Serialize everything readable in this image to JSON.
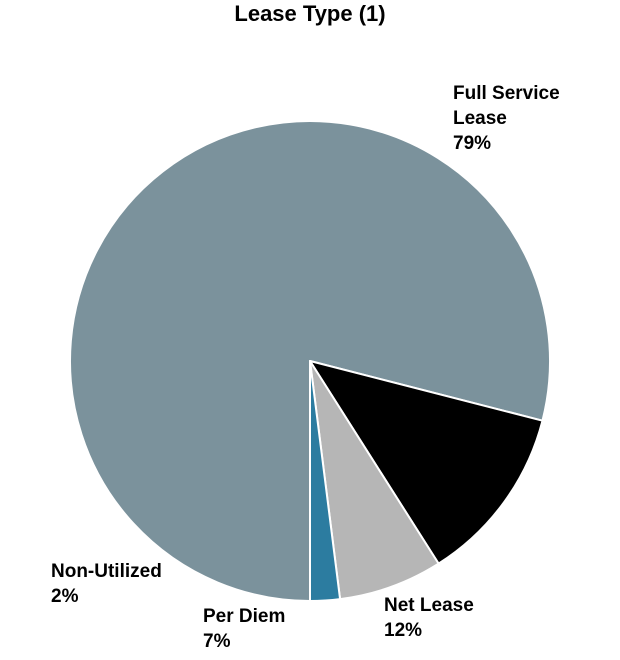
{
  "chart_data": {
    "type": "pie",
    "title": "Lease Type (1)",
    "start_angle_deg": 180,
    "direction": "clockwise",
    "slices": [
      {
        "key": "full-service-lease",
        "label_lines": [
          "Full Service",
          "Lease"
        ],
        "value": 79,
        "pct_label": "79%",
        "color": "#7B929C"
      },
      {
        "key": "net-lease",
        "label_lines": [
          "Net Lease"
        ],
        "value": 12,
        "pct_label": "12%",
        "color": "#000000"
      },
      {
        "key": "per-diem",
        "label_lines": [
          "Per Diem"
        ],
        "value": 7,
        "pct_label": "7%",
        "color": "#B6B6B6"
      },
      {
        "key": "non-utilized",
        "label_lines": [
          "Non-Utilized"
        ],
        "value": 2,
        "pct_label": "2%",
        "color": "#2C7CA0"
      }
    ]
  }
}
